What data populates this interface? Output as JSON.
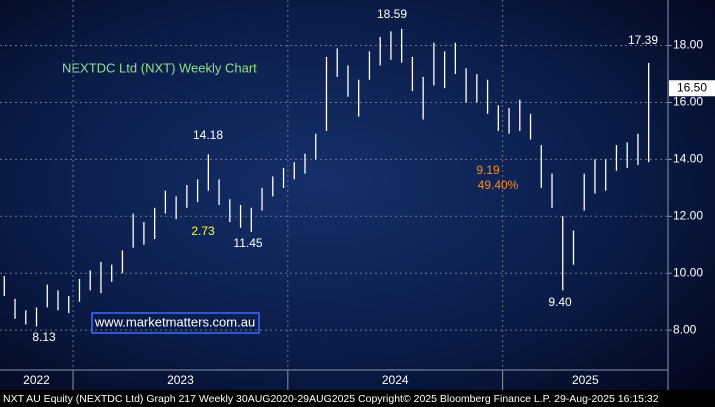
{
  "chart_data": {
    "type": "range-bar",
    "title": "NEXTDC Ltd (NXT) Weekly Chart",
    "footer": "NXT AU Equity (NEXTDC Ltd) Graph 217  Weekly 30AUG2020-29AUG2025  Copyright© 2025 Bloomberg Finance L.P.  29-Aug-2025 16:15:32",
    "website": "www.marketmatters.com.au",
    "color": "#ffffff",
    "xlim": [
      2022.66,
      2025.77
    ],
    "xticks": [
      {
        "value": 2022,
        "label": "2022"
      },
      {
        "value": 2023,
        "label": "2023"
      },
      {
        "value": 2024,
        "label": "2024"
      },
      {
        "value": 2025,
        "label": "2025"
      }
    ],
    "ylim": [
      6.6,
      19.6
    ],
    "yticks": [
      {
        "value": 8,
        "label": "8.00"
      },
      {
        "value": 10,
        "label": "10.00"
      },
      {
        "value": 12,
        "label": "12.00"
      },
      {
        "value": 14,
        "label": "14.00"
      },
      {
        "value": 16,
        "label": "16.00"
      },
      {
        "value": 18,
        "label": "18.00"
      }
    ],
    "grid": true,
    "x": [
      2022.68,
      2022.73,
      2022.78,
      2022.83,
      2022.88,
      2022.93,
      2022.98,
      2023.03,
      2023.08,
      2023.13,
      2023.18,
      2023.23,
      2023.28,
      2023.33,
      2023.38,
      2023.43,
      2023.48,
      2023.53,
      2023.58,
      2023.63,
      2023.68,
      2023.73,
      2023.78,
      2023.83,
      2023.88,
      2023.93,
      2023.98,
      2024.03,
      2024.08,
      2024.13,
      2024.18,
      2024.23,
      2024.28,
      2024.33,
      2024.38,
      2024.43,
      2024.48,
      2024.53,
      2024.58,
      2024.63,
      2024.68,
      2024.73,
      2024.78,
      2024.83,
      2024.88,
      2024.93,
      2024.98,
      2025.03,
      2025.08,
      2025.13,
      2025.18,
      2025.23,
      2025.28,
      2025.33,
      2025.38,
      2025.43,
      2025.48,
      2025.53,
      2025.58,
      2025.63,
      2025.68
    ],
    "high": [
      9.9,
      9.1,
      8.7,
      8.8,
      9.6,
      9.4,
      9.2,
      9.8,
      10.1,
      10.4,
      10.3,
      10.8,
      12.1,
      11.8,
      12.3,
      12.9,
      12.7,
      13.1,
      13.3,
      14.18,
      13.3,
      12.6,
      12.4,
      12.3,
      13.0,
      13.4,
      13.7,
      13.9,
      14.2,
      14.9,
      17.6,
      17.9,
      17.3,
      16.8,
      17.8,
      18.3,
      18.5,
      18.59,
      17.6,
      16.9,
      18.1,
      17.8,
      18.1,
      17.2,
      17.0,
      16.8,
      15.9,
      15.8,
      16.1,
      15.6,
      14.5,
      13.5,
      12.0,
      11.5,
      13.5,
      14.0,
      14.0,
      14.5,
      14.6,
      14.9,
      17.39
    ],
    "low": [
      9.2,
      8.4,
      8.2,
      8.13,
      8.8,
      8.7,
      8.6,
      9.0,
      9.4,
      9.3,
      9.7,
      10.0,
      10.9,
      11.0,
      11.2,
      12.1,
      11.9,
      12.3,
      12.5,
      12.9,
      12.4,
      11.8,
      11.6,
      11.45,
      12.2,
      12.7,
      13.0,
      13.3,
      13.5,
      14.0,
      15.0,
      16.9,
      16.2,
      15.5,
      16.8,
      17.3,
      17.5,
      17.4,
      16.4,
      15.4,
      16.6,
      16.5,
      17.0,
      16.0,
      16.0,
      15.6,
      15.0,
      14.9,
      15.0,
      14.7,
      13.0,
      12.3,
      9.4,
      10.3,
      12.2,
      12.8,
      12.9,
      13.6,
      13.7,
      13.8,
      13.9
    ],
    "last_price": {
      "value": 16.5,
      "label": "16.50"
    },
    "annotations": [
      {
        "text": "18.59",
        "color": "#ffffff"
      },
      {
        "text": "17.39",
        "color": "#ffffff"
      },
      {
        "text": "14.18",
        "color": "#ffffff"
      },
      {
        "text": "2.73",
        "color": "#ffff33"
      },
      {
        "text": "11.45",
        "color": "#ffffff"
      },
      {
        "text": "9.19",
        "color": "#ff8c1a"
      },
      {
        "text": "49.40%",
        "color": "#ff8c1a"
      },
      {
        "text": "9.40",
        "color": "#ffffff"
      },
      {
        "text": "8.13",
        "color": "#ffffff"
      }
    ]
  }
}
